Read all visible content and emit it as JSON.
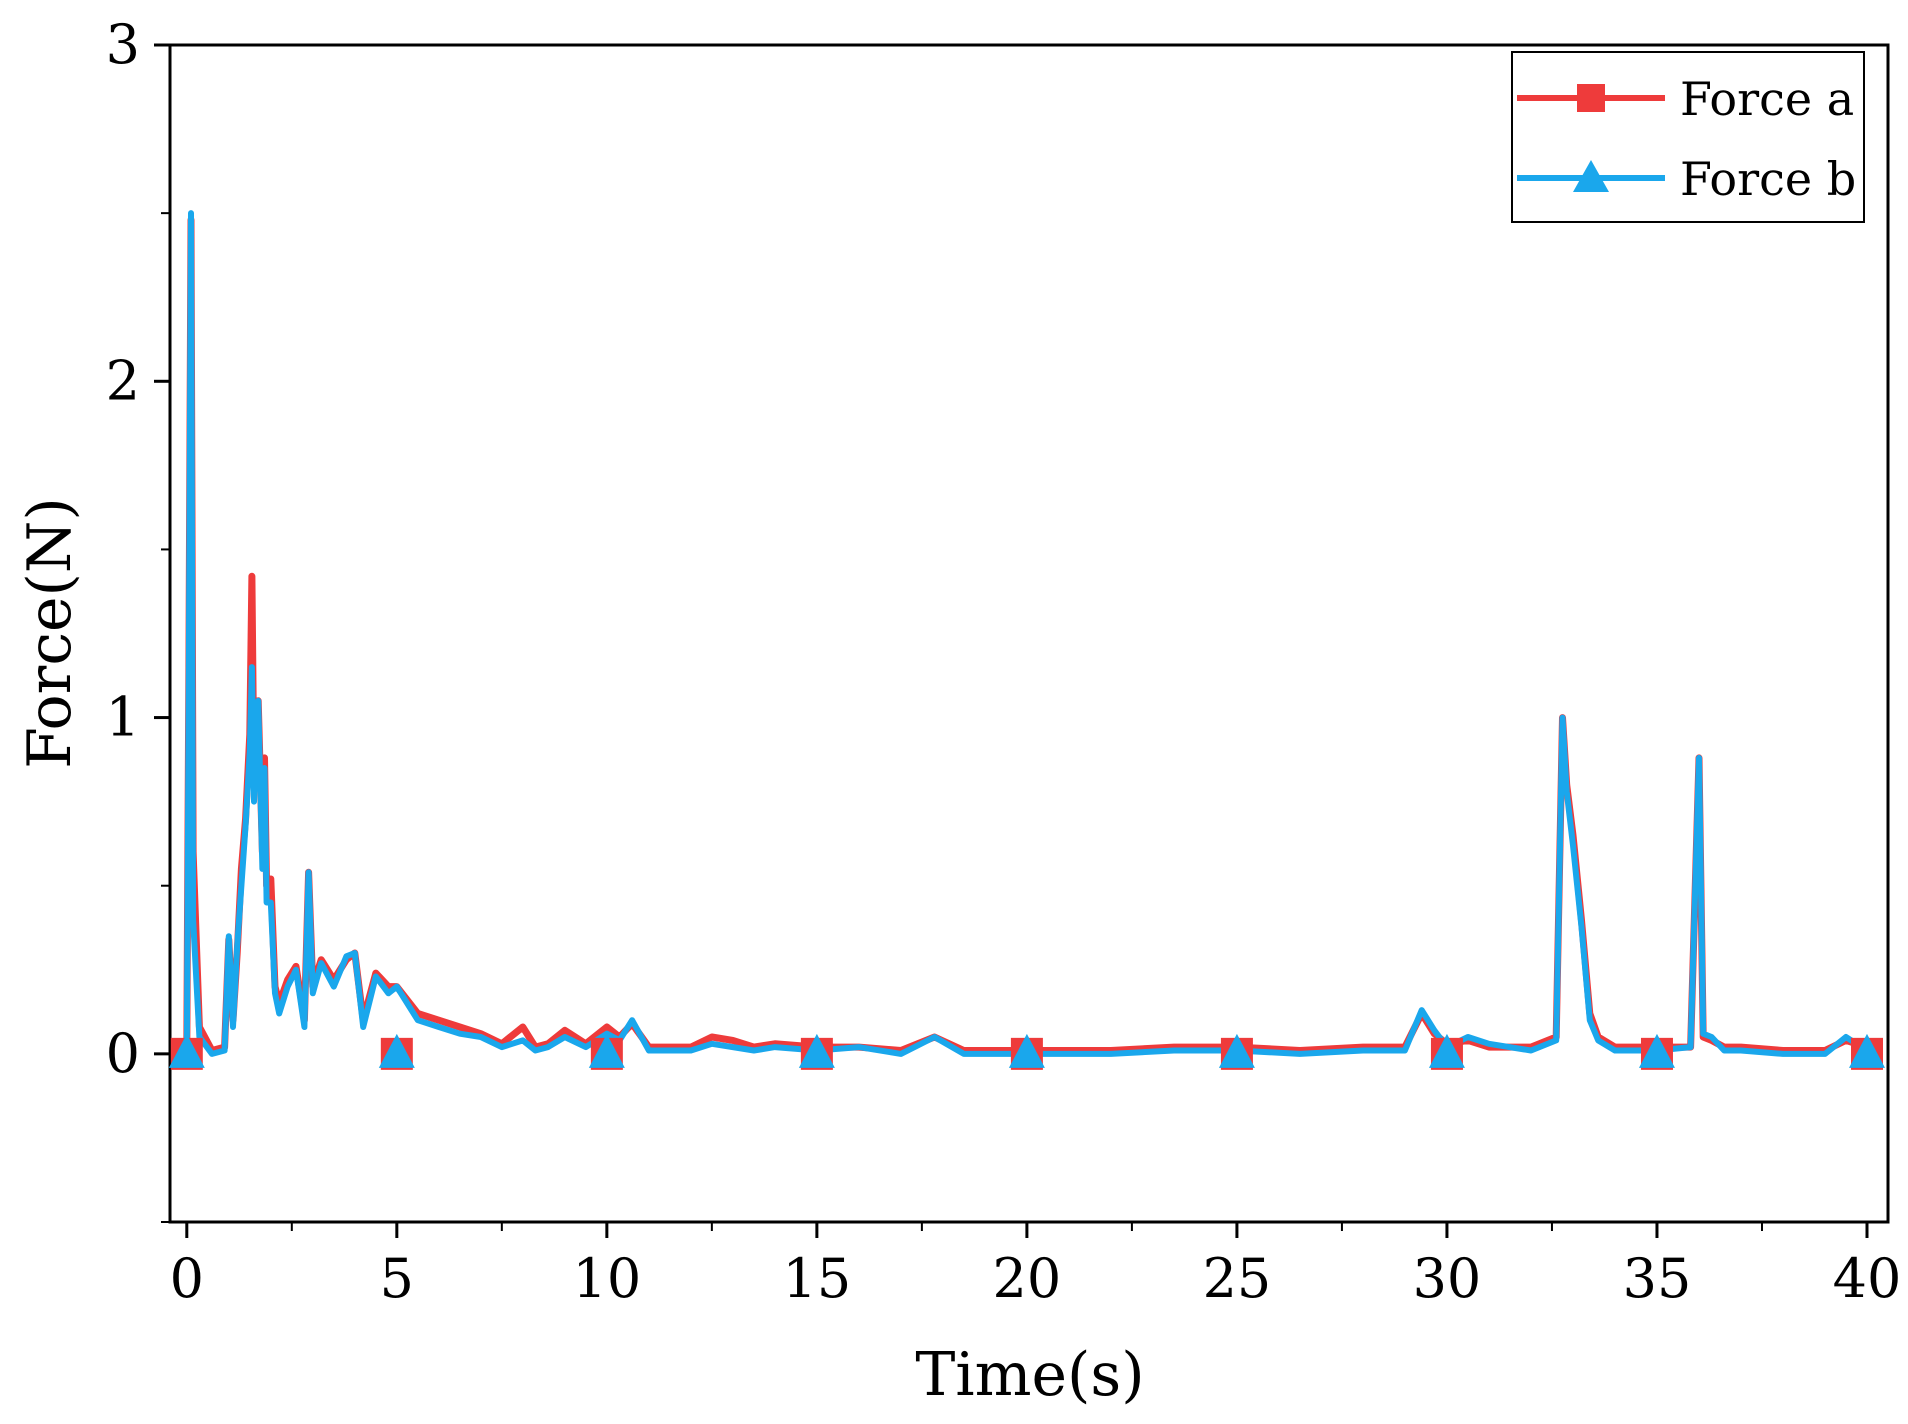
{
  "chart_data": {
    "type": "line",
    "title": "",
    "xlabel": "Time(s)",
    "ylabel": "Force(N)",
    "xlim": [
      -0.4,
      40.5
    ],
    "ylim": [
      -0.5,
      3
    ],
    "x_ticks": [
      0,
      5,
      10,
      15,
      20,
      25,
      30,
      35,
      40
    ],
    "x_tick_labels": [
      "0",
      "5",
      "10",
      "15",
      "20",
      "25",
      "30",
      "35",
      "40"
    ],
    "y_ticks": [
      0,
      1,
      2,
      3
    ],
    "y_tick_labels": [
      "0",
      "1",
      "2",
      "3"
    ],
    "legend_position": "top-right",
    "grid": false,
    "series": [
      {
        "name": "Force a",
        "color": "#ee3b3b",
        "marker": "square",
        "marker_x": [
          0,
          5,
          10,
          15,
          20,
          25,
          30,
          35,
          40
        ],
        "x": [
          0,
          0.05,
          0.1,
          0.15,
          0.3,
          0.6,
          0.9,
          1.0,
          1.1,
          1.2,
          1.3,
          1.4,
          1.5,
          1.55,
          1.6,
          1.7,
          1.8,
          1.85,
          1.9,
          2.0,
          2.1,
          2.2,
          2.4,
          2.6,
          2.8,
          2.9,
          3.0,
          3.2,
          3.5,
          3.8,
          4.0,
          4.2,
          4.5,
          4.8,
          5.0,
          5.5,
          6.0,
          6.5,
          7.0,
          7.5,
          8.0,
          8.3,
          8.6,
          9.0,
          9.5,
          10.0,
          10.3,
          10.6,
          11.0,
          12.0,
          12.5,
          13.0,
          13.5,
          14.0,
          15.0,
          16.0,
          17.0,
          17.8,
          18.5,
          20.0,
          22.0,
          23.5,
          25.0,
          26.5,
          28.0,
          29.0,
          29.4,
          29.7,
          30.0,
          30.5,
          31.0,
          32.0,
          32.6,
          32.75,
          32.85,
          33.0,
          33.2,
          33.4,
          33.6,
          34.0,
          35.0,
          35.8,
          36.0,
          36.1,
          36.3,
          36.6,
          37.0,
          38.0,
          39.0,
          39.5,
          40.0,
          40.3
        ],
        "y": [
          0.02,
          1.15,
          2.48,
          0.6,
          0.08,
          0.01,
          0.02,
          0.34,
          0.1,
          0.3,
          0.55,
          0.7,
          0.95,
          1.42,
          0.8,
          1.05,
          0.6,
          0.88,
          0.5,
          0.52,
          0.2,
          0.15,
          0.22,
          0.26,
          0.1,
          0.54,
          0.2,
          0.28,
          0.22,
          0.28,
          0.3,
          0.1,
          0.24,
          0.2,
          0.2,
          0.12,
          0.1,
          0.08,
          0.06,
          0.03,
          0.08,
          0.02,
          0.03,
          0.07,
          0.03,
          0.08,
          0.05,
          0.09,
          0.02,
          0.02,
          0.05,
          0.04,
          0.02,
          0.03,
          0.02,
          0.02,
          0.01,
          0.05,
          0.01,
          0.01,
          0.01,
          0.02,
          0.02,
          0.01,
          0.02,
          0.02,
          0.12,
          0.06,
          0.03,
          0.04,
          0.02,
          0.02,
          0.05,
          1.0,
          0.8,
          0.65,
          0.4,
          0.12,
          0.05,
          0.02,
          0.02,
          0.02,
          0.88,
          0.05,
          0.04,
          0.02,
          0.02,
          0.01,
          0.01,
          0.04,
          0.02,
          0.01
        ]
      },
      {
        "name": "Force b",
        "color": "#1aa7ec",
        "marker": "triangle",
        "marker_x": [
          0,
          5,
          10,
          15,
          20,
          25,
          30,
          35,
          40
        ],
        "x": [
          0,
          0.05,
          0.1,
          0.15,
          0.3,
          0.6,
          0.9,
          1.0,
          1.1,
          1.2,
          1.3,
          1.4,
          1.5,
          1.55,
          1.6,
          1.7,
          1.8,
          1.85,
          1.9,
          2.0,
          2.1,
          2.2,
          2.4,
          2.6,
          2.8,
          2.9,
          3.0,
          3.2,
          3.5,
          3.8,
          4.0,
          4.2,
          4.5,
          4.8,
          5.0,
          5.5,
          6.0,
          6.5,
          7.0,
          7.5,
          8.0,
          8.3,
          8.6,
          9.0,
          9.5,
          10.0,
          10.3,
          10.6,
          11.0,
          12.0,
          12.5,
          13.0,
          13.5,
          14.0,
          15.0,
          16.0,
          17.0,
          17.8,
          18.5,
          20.0,
          22.0,
          23.5,
          25.0,
          26.5,
          28.0,
          29.0,
          29.4,
          29.7,
          30.0,
          30.5,
          31.0,
          32.0,
          32.6,
          32.75,
          32.85,
          33.0,
          33.2,
          33.4,
          33.6,
          34.0,
          35.0,
          35.8,
          36.0,
          36.1,
          36.3,
          36.6,
          37.0,
          38.0,
          39.0,
          39.5,
          40.0,
          40.3
        ],
        "y": [
          0.0,
          1.18,
          2.5,
          0.4,
          0.05,
          0.0,
          0.01,
          0.35,
          0.08,
          0.32,
          0.5,
          0.68,
          0.9,
          1.15,
          0.75,
          1.05,
          0.55,
          0.85,
          0.45,
          0.45,
          0.18,
          0.12,
          0.2,
          0.25,
          0.08,
          0.54,
          0.18,
          0.27,
          0.2,
          0.29,
          0.3,
          0.08,
          0.23,
          0.18,
          0.2,
          0.1,
          0.08,
          0.06,
          0.05,
          0.02,
          0.04,
          0.01,
          0.02,
          0.05,
          0.02,
          0.06,
          0.04,
          0.1,
          0.01,
          0.01,
          0.03,
          0.02,
          0.01,
          0.02,
          0.01,
          0.02,
          0.0,
          0.05,
          0.0,
          0.0,
          0.0,
          0.01,
          0.01,
          0.0,
          0.01,
          0.01,
          0.13,
          0.07,
          0.02,
          0.05,
          0.03,
          0.01,
          0.04,
          1.0,
          0.78,
          0.62,
          0.38,
          0.1,
          0.04,
          0.01,
          0.01,
          0.02,
          0.88,
          0.06,
          0.05,
          0.01,
          0.01,
          0.0,
          0.0,
          0.05,
          0.01,
          0.0
        ]
      }
    ]
  }
}
